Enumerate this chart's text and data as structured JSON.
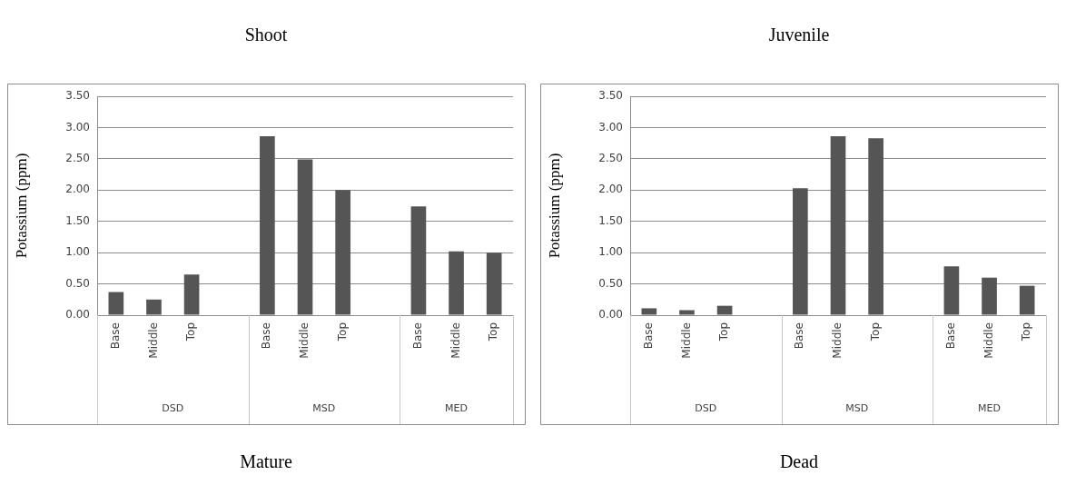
{
  "chart_data": [
    {
      "type": "bar",
      "title": "Mature",
      "ylabel": "Potassium (ppm)",
      "categories": [
        "Base",
        "Middle",
        "Top",
        null,
        "Base",
        "Middle",
        "Top",
        null,
        "Base",
        "Middle",
        "Top"
      ],
      "values": [
        0.37,
        0.25,
        0.65,
        null,
        2.86,
        2.49,
        2.0,
        null,
        1.74,
        1.02,
        1.0
      ],
      "color": "#555555",
      "ylim": [
        0,
        3.5
      ],
      "yticks": [
        {
          "value": 0,
          "label": "0.00"
        },
        {
          "value": 0.5,
          "label": "0.50"
        },
        {
          "value": 1,
          "label": "1.00"
        },
        {
          "value": 1.5,
          "label": "1.50"
        },
        {
          "value": 2,
          "label": "2.00"
        },
        {
          "value": 2.5,
          "label": "2.50"
        },
        {
          "value": 3,
          "label": "3.00"
        },
        {
          "value": 3.5,
          "label": "3.50"
        }
      ],
      "grid": "y",
      "legend": false,
      "annotations": [
        "Shoot",
        "DSD",
        "MSD",
        "MED"
      ]
    },
    {
      "type": "bar",
      "title": "Dead",
      "ylabel": "Potassium (ppm)",
      "categories": [
        "Base",
        "Middle",
        "Top",
        null,
        "Base",
        "Middle",
        "Top",
        null,
        "Base",
        "Middle",
        "Top"
      ],
      "values": [
        0.11,
        0.08,
        0.15,
        null,
        2.03,
        2.86,
        2.83,
        null,
        0.78,
        0.6,
        0.47
      ],
      "color": "#555555",
      "ylim": [
        0,
        3.5
      ],
      "yticks": [
        {
          "value": 0,
          "label": "0.00"
        },
        {
          "value": 0.5,
          "label": "0.50"
        },
        {
          "value": 1,
          "label": "1.00"
        },
        {
          "value": 1.5,
          "label": "1.50"
        },
        {
          "value": 2,
          "label": "2.00"
        },
        {
          "value": 2.5,
          "label": "2.50"
        },
        {
          "value": 3,
          "label": "3.00"
        },
        {
          "value": 3.5,
          "label": "3.50"
        }
      ],
      "grid": "y",
      "legend": false,
      "annotations": [
        "Juvenile",
        "DSD",
        "MSD",
        "MED"
      ]
    }
  ]
}
